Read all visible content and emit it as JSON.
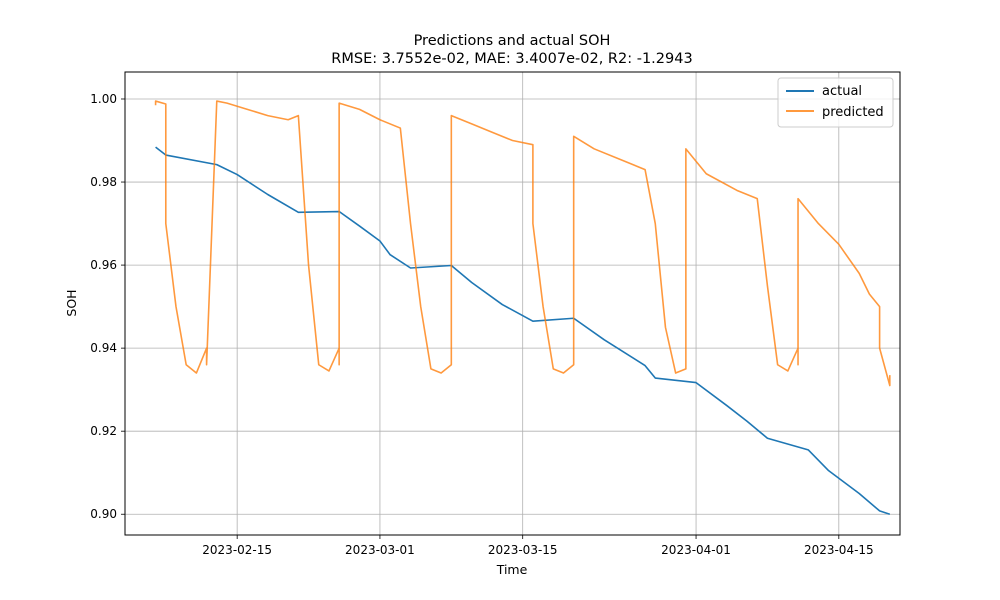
{
  "chart_data": {
    "type": "line",
    "title": "Predictions and actual SOH",
    "subtitle": "RMSE: 3.7552e-02, MAE: 3.4007e-02, R2: -1.2943",
    "xlabel": "Time",
    "ylabel": "SOH",
    "xlim": [
      "2023-02-04",
      "2023-04-21"
    ],
    "ylim": [
      0.895,
      1.0065
    ],
    "x_ticks": [
      "2023-02-15",
      "2023-03-01",
      "2023-03-15",
      "2023-04-01",
      "2023-04-15"
    ],
    "y_ticks": [
      "0.90",
      "0.92",
      "0.94",
      "0.96",
      "0.98",
      "1.00"
    ],
    "grid": true,
    "legend_position": "top-right",
    "series": [
      {
        "name": "actual",
        "color": "#1f77b4",
        "points": [
          [
            "2023-02-07",
            0.9884
          ],
          [
            "2023-02-08",
            0.9865
          ],
          [
            "2023-02-13",
            0.9842
          ],
          [
            "2023-02-15",
            0.9818
          ],
          [
            "2023-02-18",
            0.977
          ],
          [
            "2023-02-21",
            0.9727
          ],
          [
            "2023-02-25",
            0.9729
          ],
          [
            "2023-02-27",
            0.9694
          ],
          [
            "2023-03-01",
            0.9658
          ],
          [
            "2023-03-02",
            0.9625
          ],
          [
            "2023-03-04",
            0.9593
          ],
          [
            "2023-03-08",
            0.9599
          ],
          [
            "2023-03-10",
            0.9558
          ],
          [
            "2023-03-13",
            0.9505
          ],
          [
            "2023-03-16",
            0.9465
          ],
          [
            "2023-03-20",
            0.9472
          ],
          [
            "2023-03-23",
            0.942
          ],
          [
            "2023-03-27",
            0.9358
          ],
          [
            "2023-03-28",
            0.9328
          ],
          [
            "2023-04-01",
            0.9317
          ],
          [
            "2023-04-04",
            0.9262
          ],
          [
            "2023-04-06",
            0.9224
          ],
          [
            "2023-04-08",
            0.9183
          ],
          [
            "2023-04-12",
            0.9155
          ],
          [
            "2023-04-14",
            0.9105
          ],
          [
            "2023-04-17",
            0.905
          ],
          [
            "2023-04-19",
            0.9008
          ],
          [
            "2023-04-20",
            0.9
          ]
        ]
      },
      {
        "name": "predicted",
        "color": "#ff7f0e",
        "points": [
          [
            "2023-02-07",
            0.9985
          ],
          [
            "2023-02-07",
            0.9995
          ],
          [
            "2023-02-08",
            0.9988
          ],
          [
            "2023-02-08",
            0.97
          ],
          [
            "2023-02-09",
            0.95
          ],
          [
            "2023-02-10",
            0.936
          ],
          [
            "2023-02-11",
            0.934
          ],
          [
            "2023-02-12",
            0.94
          ],
          [
            "2023-02-12",
            0.936
          ],
          [
            "2023-02-13",
            0.9995
          ],
          [
            "2023-02-14",
            0.999
          ],
          [
            "2023-02-16",
            0.9975
          ],
          [
            "2023-02-18",
            0.996
          ],
          [
            "2023-02-20",
            0.995
          ],
          [
            "2023-02-21",
            0.996
          ],
          [
            "2023-02-22",
            0.96
          ],
          [
            "2023-02-23",
            0.936
          ],
          [
            "2023-02-24",
            0.9345
          ],
          [
            "2023-02-25",
            0.94
          ],
          [
            "2023-02-25",
            0.936
          ],
          [
            "2023-02-25",
            0.999
          ],
          [
            "2023-02-27",
            0.9975
          ],
          [
            "2023-03-01",
            0.995
          ],
          [
            "2023-03-03",
            0.993
          ],
          [
            "2023-03-04",
            0.97
          ],
          [
            "2023-03-05",
            0.95
          ],
          [
            "2023-03-06",
            0.935
          ],
          [
            "2023-03-07",
            0.934
          ],
          [
            "2023-03-08",
            0.936
          ],
          [
            "2023-03-08",
            0.996
          ],
          [
            "2023-03-10",
            0.994
          ],
          [
            "2023-03-12",
            0.992
          ],
          [
            "2023-03-14",
            0.99
          ],
          [
            "2023-03-16",
            0.989
          ],
          [
            "2023-03-16",
            0.97
          ],
          [
            "2023-03-17",
            0.95
          ],
          [
            "2023-03-18",
            0.935
          ],
          [
            "2023-03-19",
            0.934
          ],
          [
            "2023-03-20",
            0.936
          ],
          [
            "2023-03-20",
            0.991
          ],
          [
            "2023-03-22",
            0.988
          ],
          [
            "2023-03-25",
            0.985
          ],
          [
            "2023-03-27",
            0.983
          ],
          [
            "2023-03-28",
            0.97
          ],
          [
            "2023-03-29",
            0.945
          ],
          [
            "2023-03-30",
            0.934
          ],
          [
            "2023-03-31",
            0.935
          ],
          [
            "2023-03-31",
            0.988
          ],
          [
            "2023-04-02",
            0.982
          ],
          [
            "2023-04-05",
            0.978
          ],
          [
            "2023-04-07",
            0.976
          ],
          [
            "2023-04-08",
            0.955
          ],
          [
            "2023-04-09",
            0.936
          ],
          [
            "2023-04-10",
            0.9345
          ],
          [
            "2023-04-11",
            0.94
          ],
          [
            "2023-04-11",
            0.936
          ],
          [
            "2023-04-11",
            0.976
          ],
          [
            "2023-04-13",
            0.97
          ],
          [
            "2023-04-15",
            0.965
          ],
          [
            "2023-04-17",
            0.958
          ],
          [
            "2023-04-18",
            0.953
          ],
          [
            "2023-04-19",
            0.95
          ],
          [
            "2023-04-19",
            0.94
          ],
          [
            "2023-04-20",
            0.931
          ],
          [
            "2023-04-20",
            0.9335
          ]
        ]
      }
    ]
  }
}
